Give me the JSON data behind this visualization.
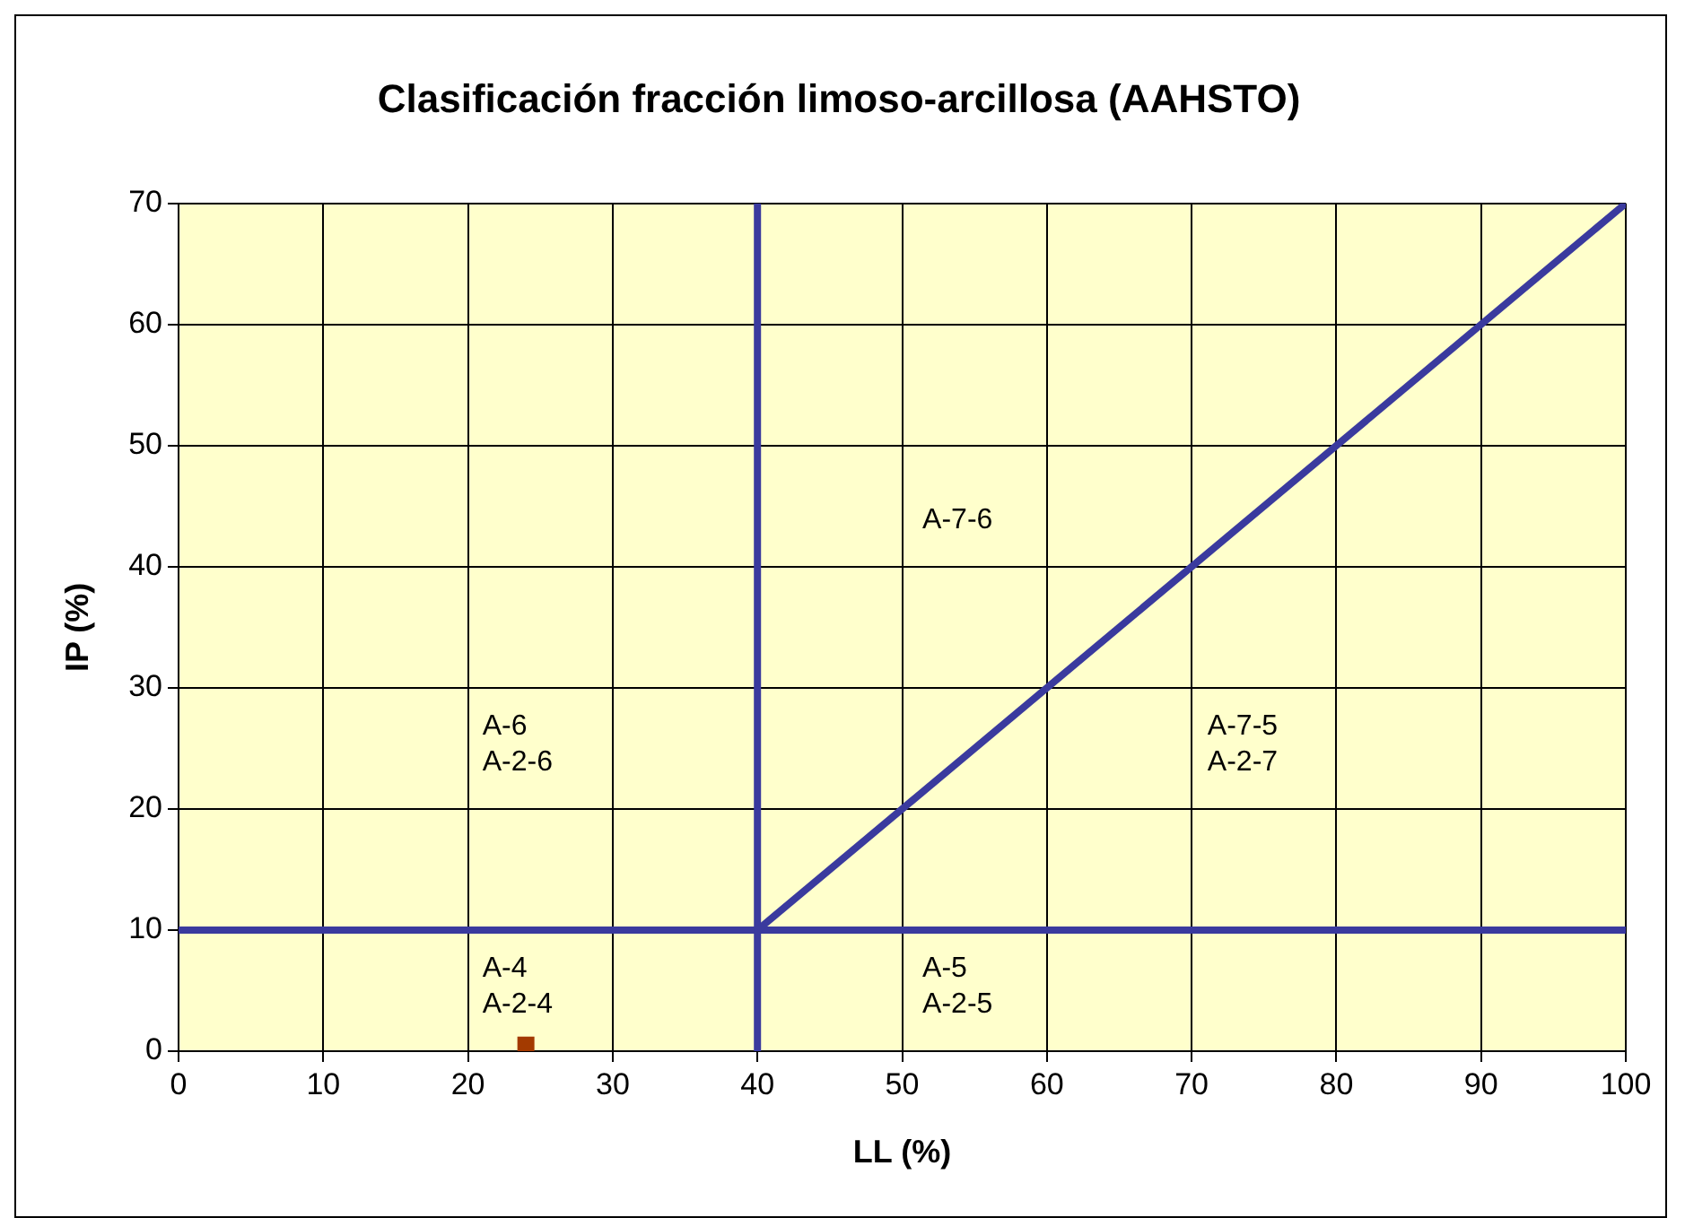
{
  "chart_data": {
    "type": "scatter",
    "title": "Clasificación fracción limoso-arcillosa (AAHSTO)",
    "xlabel": "LL (%)",
    "ylabel": "IP (%)",
    "series": [
      {
        "color": "#a33a00",
        "x": [
          24
        ],
        "values": [
          0.5
        ],
        "marker": "square"
      },
      {
        "type": "line",
        "color": "#3a3a9e",
        "x": [
          40,
          100
        ],
        "values": [
          10,
          70
        ],
        "marker": "none"
      },
      {
        "type": "line",
        "color": "#3a3a9e",
        "x": [
          40,
          40
        ],
        "values": [
          0,
          70
        ],
        "marker": "none"
      },
      {
        "type": "line",
        "color": "#3a3a9e",
        "x": [
          0,
          100
        ],
        "values": [
          10,
          10
        ],
        "marker": "none"
      }
    ],
    "annotations": [
      "A-7-6",
      "A-6\nA-2-6",
      "A-7-5\nA-2-7",
      "A-4\nA-2-4",
      "A-5\nA-2-5"
    ],
    "xlim": [
      0,
      100
    ],
    "xticks": [
      0,
      10,
      20,
      30,
      40,
      50,
      60,
      70,
      80,
      90,
      100
    ],
    "ylim": [
      0,
      70
    ],
    "yticks": [
      0,
      10,
      20,
      30,
      40,
      50,
      60,
      70
    ],
    "grid": true,
    "legend": false
  }
}
